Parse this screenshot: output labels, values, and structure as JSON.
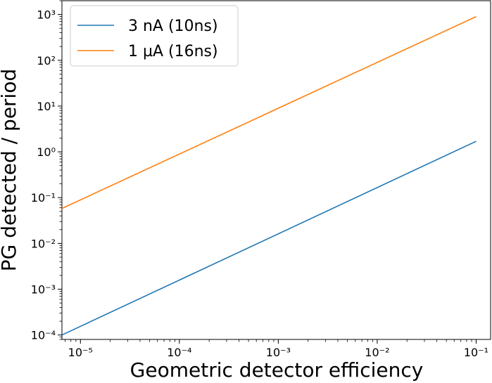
{
  "chart_data": {
    "type": "line",
    "xscale": "log",
    "yscale": "log",
    "xlabel": "Geometric detector efficiency",
    "ylabel": "PG detected / period",
    "xlim": [
      6.5e-06,
      0.14
    ],
    "ylim": [
      8e-05,
      2000
    ],
    "x_ticks": [
      {
        "value": 1e-05,
        "label": "10⁻⁵"
      },
      {
        "value": 0.0001,
        "label": "10⁻⁴"
      },
      {
        "value": 0.001,
        "label": "10⁻³"
      },
      {
        "value": 0.01,
        "label": "10⁻²"
      },
      {
        "value": 0.1,
        "label": "10⁻¹"
      }
    ],
    "y_ticks": [
      {
        "value": 0.0001,
        "label": "10⁻⁴"
      },
      {
        "value": 0.001,
        "label": "10⁻³"
      },
      {
        "value": 0.01,
        "label": "10⁻²"
      },
      {
        "value": 0.1,
        "label": "10⁻¹"
      },
      {
        "value": 1,
        "label": "10⁰"
      },
      {
        "value": 10,
        "label": "10¹"
      },
      {
        "value": 100,
        "label": "10²"
      },
      {
        "value": 1000,
        "label": "10³"
      }
    ],
    "series": [
      {
        "name": "3 nA (10ns)",
        "color": "#1f77b4",
        "x": [
          6.5e-06,
          0.1
        ],
        "y": [
          0.0001,
          1.7
        ]
      },
      {
        "name": "1 µA (16ns)",
        "color": "#ff7f0e",
        "x": [
          6.5e-06,
          0.1
        ],
        "y": [
          0.058,
          900
        ]
      }
    ],
    "legend_position": "top-left",
    "grid": false
  }
}
